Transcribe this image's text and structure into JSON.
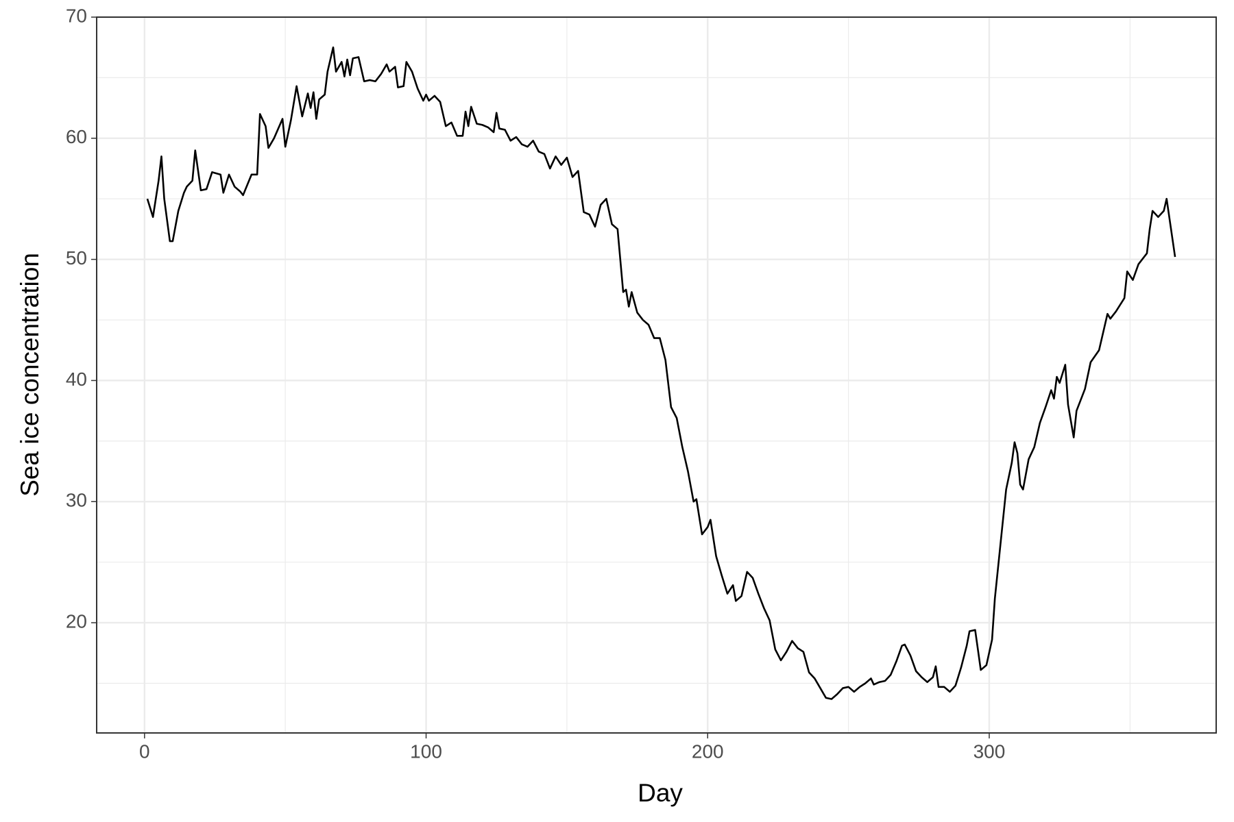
{
  "chart_data": {
    "type": "line",
    "xlabel": "Day",
    "ylabel": "Sea ice concentration",
    "color": "#000000",
    "xlim": [
      -17,
      380.6
    ],
    "ylim": [
      10.9,
      70
    ],
    "xticks": [
      0,
      100,
      200,
      300
    ],
    "yticks": [
      20,
      30,
      40,
      50,
      60,
      70
    ],
    "xminor": [
      50,
      150,
      250,
      350
    ],
    "yminor": [
      15,
      25,
      35,
      45,
      55,
      65
    ],
    "grid": true,
    "x": [
      1,
      3,
      5,
      6,
      7,
      9,
      10,
      12,
      14,
      15,
      17,
      18,
      20,
      22,
      24,
      27,
      28,
      30,
      32,
      34,
      35,
      38,
      40,
      41,
      43,
      44,
      46,
      49,
      50,
      52,
      54,
      56,
      58,
      59,
      60,
      61,
      62,
      64,
      65,
      67,
      68,
      70,
      71,
      72,
      73,
      74,
      76,
      78,
      80,
      82,
      84,
      86,
      87,
      89,
      90,
      92,
      93,
      95,
      97,
      99,
      100,
      101,
      103,
      105,
      107,
      109,
      111,
      113,
      114,
      115,
      116,
      118,
      120,
      122,
      124,
      125,
      126,
      128,
      130,
      132,
      134,
      136,
      138,
      140,
      142,
      144,
      146,
      148,
      150,
      152,
      154,
      156,
      158,
      160,
      162,
      164,
      166,
      168,
      170,
      171,
      172,
      173,
      175,
      177,
      179,
      181,
      183,
      185,
      187,
      189,
      191,
      193,
      195,
      196,
      198,
      200,
      201,
      203,
      205,
      207,
      209,
      210,
      212,
      214,
      216,
      218,
      220,
      222,
      224,
      226,
      228,
      230,
      232,
      234,
      236,
      238,
      240,
      242,
      244,
      246,
      248,
      250,
      252,
      254,
      256,
      258,
      259,
      261,
      263,
      265,
      267,
      269,
      270,
      272,
      274,
      276,
      278,
      280,
      281,
      282,
      284,
      286,
      288,
      290,
      292,
      293,
      295,
      297,
      299,
      301,
      302,
      304,
      306,
      308,
      309,
      310,
      311,
      312,
      314,
      316,
      318,
      320,
      322,
      323,
      324,
      325,
      327,
      328,
      330,
      331,
      334,
      336,
      339,
      342,
      343,
      345,
      348,
      349,
      351,
      353,
      356,
      357,
      358,
      360,
      362,
      363,
      366
    ],
    "values": [
      55,
      53.5,
      56.5,
      58.5,
      55,
      51.5,
      51.5,
      54,
      55.5,
      56,
      56.5,
      59,
      55.7,
      55.8,
      57.2,
      57,
      55.5,
      57,
      56,
      55.6,
      55.3,
      57,
      57,
      62,
      61,
      59.2,
      60,
      61.6,
      59.3,
      61.5,
      64.3,
      61.8,
      63.7,
      62.5,
      63.8,
      61.6,
      63.2,
      63.6,
      65.5,
      67.5,
      65.5,
      66.3,
      65.1,
      66.5,
      65.2,
      66.6,
      66.7,
      64.7,
      64.8,
      64.7,
      65.3,
      66.1,
      65.5,
      65.9,
      64.2,
      64.3,
      66.3,
      65.5,
      64.1,
      63.1,
      63.6,
      63.1,
      63.5,
      63,
      61,
      61.3,
      60.2,
      60.2,
      62.2,
      61,
      62.6,
      61.2,
      61.1,
      60.9,
      60.5,
      62.1,
      60.8,
      60.7,
      59.8,
      60.1,
      59.5,
      59.3,
      59.8,
      58.9,
      58.7,
      57.5,
      58.5,
      57.8,
      58.4,
      56.8,
      57.3,
      53.9,
      53.7,
      52.7,
      54.5,
      55,
      52.9,
      52.5,
      47.3,
      47.5,
      46.1,
      47.3,
      45.6,
      45,
      44.6,
      43.5,
      43.5,
      41.7,
      37.8,
      36.9,
      34.5,
      32.5,
      30,
      30.2,
      27.3,
      27.9,
      28.5,
      25.5,
      23.9,
      22.4,
      23.1,
      21.8,
      22.2,
      24.2,
      23.7,
      22.4,
      21.2,
      20.2,
      17.8,
      16.9,
      17.6,
      18.5,
      17.9,
      17.6,
      15.9,
      15.4,
      14.6,
      13.8,
      13.7,
      14.1,
      14.6,
      14.7,
      14.3,
      14.7,
      15,
      15.4,
      14.9,
      15.1,
      15.2,
      15.7,
      16.8,
      18.1,
      18.2,
      17.3,
      16,
      15.5,
      15.1,
      15.5,
      16.4,
      14.7,
      14.7,
      14.3,
      14.8,
      16.3,
      18.1,
      19.3,
      19.4,
      16.1,
      16.5,
      18.6,
      22,
      26.5,
      31,
      33.2,
      34.9,
      34,
      31.4,
      31,
      33.5,
      34.5,
      36.5,
      37.8,
      39.2,
      38.5,
      40.3,
      39.8,
      41.3,
      38,
      35.3,
      37.5,
      39.3,
      41.5,
      42.5,
      45.5,
      45.1,
      45.7,
      46.8,
      49,
      48.3,
      49.6,
      50.5,
      52.5,
      54,
      53.5,
      54,
      55,
      50.2
    ]
  }
}
